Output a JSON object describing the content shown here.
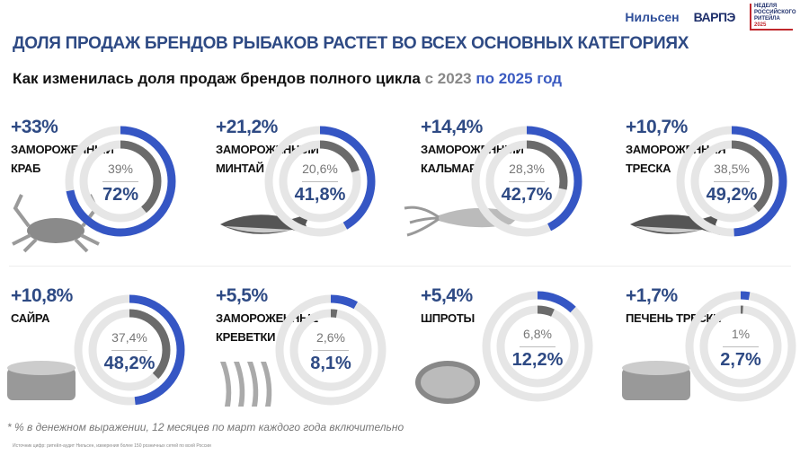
{
  "logos": {
    "nielsen": "Нильсен",
    "varpe": "ВАРПЭ",
    "week": [
      "НЕДЕЛЯ",
      "РОССИЙСКОГО",
      "РИТЕЙЛА"
    ],
    "week_year": "2025"
  },
  "title": "ДОЛЯ ПРОДАЖ БРЕНДОВ РЫБАКОВ РАСТЕТ ВО ВСЕХ ОСНОВНЫХ КАТЕГОРИЯХ",
  "subtitle": {
    "main": "Как изменилась доля продаж брендов полного цикла ",
    "from": "с 2023 ",
    "to": "по 2025 год"
  },
  "colors": {
    "blue": "#3556c4",
    "dark": "#6b6b6b",
    "track": "#e6e6e6"
  },
  "categories": [
    {
      "change": "+33%",
      "title": [
        "Замороженный",
        "краб"
      ],
      "v2023": "39%",
      "v2025": "72%",
      "f2023": 0.39,
      "f2025": 0.72,
      "image": "crab"
    },
    {
      "change": "+21,2%",
      "title": [
        "Замороженный",
        "минтай"
      ],
      "v2023": "20,6%",
      "v2025": "41,8%",
      "f2023": 0.206,
      "f2025": 0.418,
      "image": "fish"
    },
    {
      "change": "+14,4%",
      "title": [
        "Замороженный",
        "кальмар"
      ],
      "v2023": "28,3%",
      "v2025": "42,7%",
      "f2023": 0.283,
      "f2025": 0.427,
      "image": "squid"
    },
    {
      "change": "+10,7%",
      "title": [
        "Замороженная",
        "треска"
      ],
      "v2023": "38,5%",
      "v2025": "49,2%",
      "f2023": 0.385,
      "f2025": 0.492,
      "image": "fish"
    },
    {
      "change": "+10,8%",
      "title": [
        "Сайра",
        ""
      ],
      "v2023": "37,4%",
      "v2025": "48,2%",
      "f2023": 0.374,
      "f2025": 0.482,
      "image": "can"
    },
    {
      "change": "+5,5%",
      "title": [
        "Замороженные",
        "креветки"
      ],
      "v2023": "2,6%",
      "v2025": "8,1%",
      "f2023": 0.026,
      "f2025": 0.081,
      "image": "shrimp"
    },
    {
      "change": "+5,4%",
      "title": [
        "Шпроты",
        ""
      ],
      "v2023": "6,8%",
      "v2025": "12,2%",
      "f2023": 0.068,
      "f2025": 0.122,
      "image": "sprats"
    },
    {
      "change": "+1,7%",
      "title": [
        "Печень трески",
        ""
      ],
      "v2023": "1%",
      "v2025": "2,7%",
      "f2023": 0.01,
      "f2025": 0.027,
      "image": "can"
    }
  ],
  "footnote": "* % в денежном выражении, 12 месяцев по март каждого года включительно",
  "source": "Источник цифр: ритейл-аудит Нильсен, измерения более 150 розничных сетей по всей России"
}
